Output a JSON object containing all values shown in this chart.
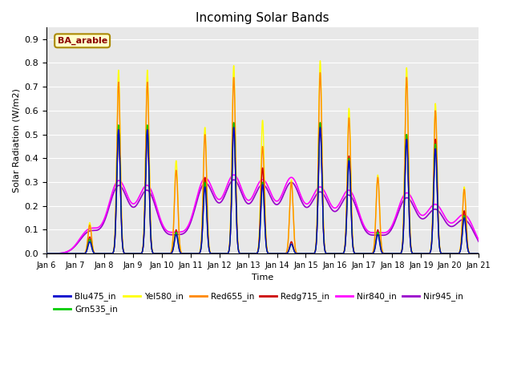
{
  "title": "Incoming Solar Bands",
  "ylabel": "Solar Radiation (W/m2)",
  "xlabel_partial": "Time",
  "annotation": "BA_arable",
  "ylim": [
    0.0,
    0.95
  ],
  "yticks": [
    0.0,
    0.1,
    0.2,
    0.3,
    0.4,
    0.5,
    0.6,
    0.7,
    0.8,
    0.9
  ],
  "x_tick_days": [
    6,
    7,
    8,
    9,
    10,
    11,
    12,
    13,
    14,
    15,
    16,
    17,
    18,
    19,
    20,
    21
  ],
  "background_color": "#e8e8e8",
  "series_order": [
    "Nir945_in",
    "Nir840_in",
    "Yel580_in",
    "Red655_in",
    "Redg715_in",
    "Grn535_in",
    "Blu475_in"
  ],
  "series": {
    "Blu475_in": {
      "color": "#0000cc",
      "lw": 1.0
    },
    "Grn535_in": {
      "color": "#00cc00",
      "lw": 1.0
    },
    "Yel580_in": {
      "color": "#ffff00",
      "lw": 1.0
    },
    "Red655_in": {
      "color": "#ff8800",
      "lw": 1.0
    },
    "Redg715_in": {
      "color": "#cc0000",
      "lw": 1.0
    },
    "Nir840_in": {
      "color": "#ff00ff",
      "lw": 1.2
    },
    "Nir945_in": {
      "color": "#9900cc",
      "lw": 1.2
    }
  },
  "legend_order": [
    "Blu475_in",
    "Grn535_in",
    "Yel580_in",
    "Red655_in",
    "Redg715_in",
    "Nir840_in",
    "Nir945_in"
  ],
  "peak_days": [
    7,
    8,
    9,
    10,
    11,
    12,
    13,
    14,
    15,
    16,
    17,
    18,
    19,
    20
  ],
  "narrow_peaks": {
    "Yel580_in": [
      0.13,
      0.77,
      0.77,
      0.39,
      0.53,
      0.79,
      0.56,
      0.31,
      0.81,
      0.61,
      0.33,
      0.78,
      0.63,
      0.28
    ],
    "Red655_in": [
      0.12,
      0.72,
      0.72,
      0.35,
      0.5,
      0.74,
      0.45,
      0.3,
      0.76,
      0.57,
      0.32,
      0.74,
      0.6,
      0.27
    ],
    "Redg715_in": [
      0.07,
      0.52,
      0.52,
      0.1,
      0.32,
      0.55,
      0.36,
      0.05,
      0.55,
      0.41,
      0.1,
      0.5,
      0.48,
      0.18
    ],
    "Blu475_in": [
      0.05,
      0.52,
      0.52,
      0.08,
      0.28,
      0.53,
      0.29,
      0.04,
      0.53,
      0.39,
      0.08,
      0.48,
      0.44,
      0.15
    ],
    "Grn535_in": [
      0.06,
      0.54,
      0.54,
      0.09,
      0.3,
      0.55,
      0.3,
      0.04,
      0.55,
      0.4,
      0.09,
      0.5,
      0.46,
      0.16
    ]
  },
  "wide_peaks": {
    "Nir840_in": [
      0.1,
      0.3,
      0.28,
      0.08,
      0.31,
      0.32,
      0.3,
      0.31,
      0.27,
      0.26,
      0.08,
      0.25,
      0.2,
      0.16
    ],
    "Nir945_in": [
      0.09,
      0.28,
      0.26,
      0.07,
      0.29,
      0.3,
      0.28,
      0.29,
      0.25,
      0.24,
      0.07,
      0.23,
      0.18,
      0.14
    ]
  },
  "narrow_sigma": 0.06,
  "wide_sigma": 0.35
}
